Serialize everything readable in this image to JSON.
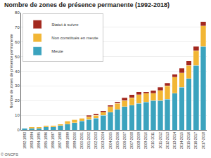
{
  "chart_data": {
    "type": "bar",
    "title": "Nombre de zones de présence permanente (1992-2018)",
    "y_label": "Nombre de zones de présence permanente",
    "source": "© ONCFS",
    "categories": [
      "1992-1993",
      "1993-1994",
      "1994-1995",
      "1995-1996",
      "1996-1997",
      "1997-1998",
      "1998-1999",
      "1999-2000",
      "2000-2001",
      "2001-2002",
      "2002-2003",
      "2003-2004",
      "2004-2005",
      "2005-2006",
      "2006-2007",
      "2007-2008",
      "2008-2009",
      "2009-2010",
      "2010-2011",
      "2011-2012",
      "2012-2013",
      "2013-2014",
      "2014-2015",
      "2015-2016",
      "2016-2017",
      "2017-2018"
    ],
    "series": [
      {
        "name": "Meute",
        "color": "#3ba3be",
        "values": [
          1,
          1,
          1,
          2,
          2,
          3,
          4,
          5,
          6,
          7,
          8,
          10,
          12,
          14,
          16,
          17,
          18,
          19,
          20,
          20,
          21,
          25,
          29,
          35,
          44,
          57
        ]
      },
      {
        "name": "Non constitués en meute",
        "color": "#f2b635",
        "values": [
          0,
          1,
          1,
          1,
          1,
          1,
          2,
          2,
          2,
          2,
          2,
          2,
          4,
          4,
          4,
          5,
          6,
          6,
          5,
          7,
          9,
          11,
          10,
          9,
          10,
          14
        ]
      },
      {
        "name": "Statut à suivre",
        "color": "#a3281e",
        "values": [
          0,
          0,
          0,
          0,
          0,
          0,
          0,
          0,
          0,
          1,
          1,
          1,
          1,
          1,
          2,
          2,
          2,
          1,
          2,
          2,
          2,
          2,
          3,
          3,
          3,
          3
        ]
      }
    ],
    "stacked": true,
    "ylim": [
      0,
      80
    ],
    "yticks": [
      0,
      10,
      20,
      30,
      40,
      50,
      60,
      70,
      80
    ],
    "grid": true,
    "legend": "top-left"
  }
}
